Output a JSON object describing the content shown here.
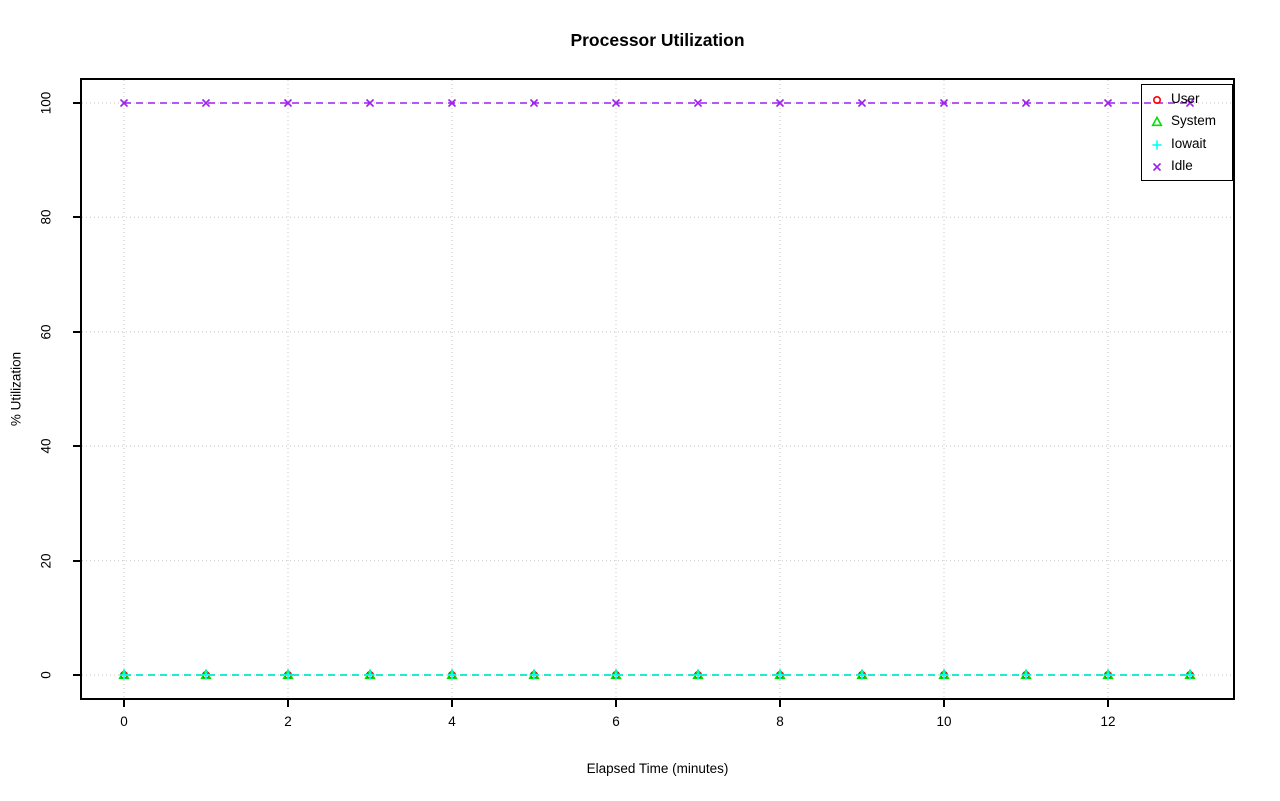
{
  "chart_data": {
    "type": "line",
    "title": "Processor Utilization",
    "xlabel": "Elapsed Time (minutes)",
    "ylabel": "% Utilization",
    "x": [
      0,
      1,
      2,
      3,
      4,
      5,
      6,
      7,
      8,
      9,
      10,
      11,
      12,
      13
    ],
    "series": [
      {
        "name": "User",
        "color": "#FF0000",
        "marker": "circle",
        "values": [
          0,
          0,
          0,
          0,
          0,
          0,
          0,
          0,
          0,
          0,
          0,
          0,
          0,
          0
        ]
      },
      {
        "name": "System",
        "color": "#00E000",
        "marker": "triangle",
        "values": [
          0,
          0,
          0,
          0,
          0,
          0,
          0,
          0,
          0,
          0,
          0,
          0,
          0,
          0
        ]
      },
      {
        "name": "Iowait",
        "color": "#00FFFF",
        "marker": "plus",
        "values": [
          0,
          0,
          0,
          0,
          0,
          0,
          0,
          0,
          0,
          0,
          0,
          0,
          0,
          0
        ]
      },
      {
        "name": "Idle",
        "color": "#A020F0",
        "marker": "x",
        "values": [
          100,
          100,
          100,
          100,
          100,
          100,
          100,
          100,
          100,
          100,
          100,
          100,
          100,
          100
        ]
      }
    ],
    "x_ticks": [
      0,
      2,
      4,
      6,
      8,
      10,
      12
    ],
    "y_ticks": [
      0,
      20,
      40,
      60,
      80,
      100
    ],
    "xlim": [
      -0.52,
      13.52
    ],
    "ylim": [
      -4,
      104
    ],
    "grid": true,
    "grid_style": "dotted",
    "grid_color": "#D3D3D3",
    "line_style": "dashed",
    "legend_position": "topright",
    "axis_color": "#000000",
    "background_color": "#FFFFFF"
  }
}
